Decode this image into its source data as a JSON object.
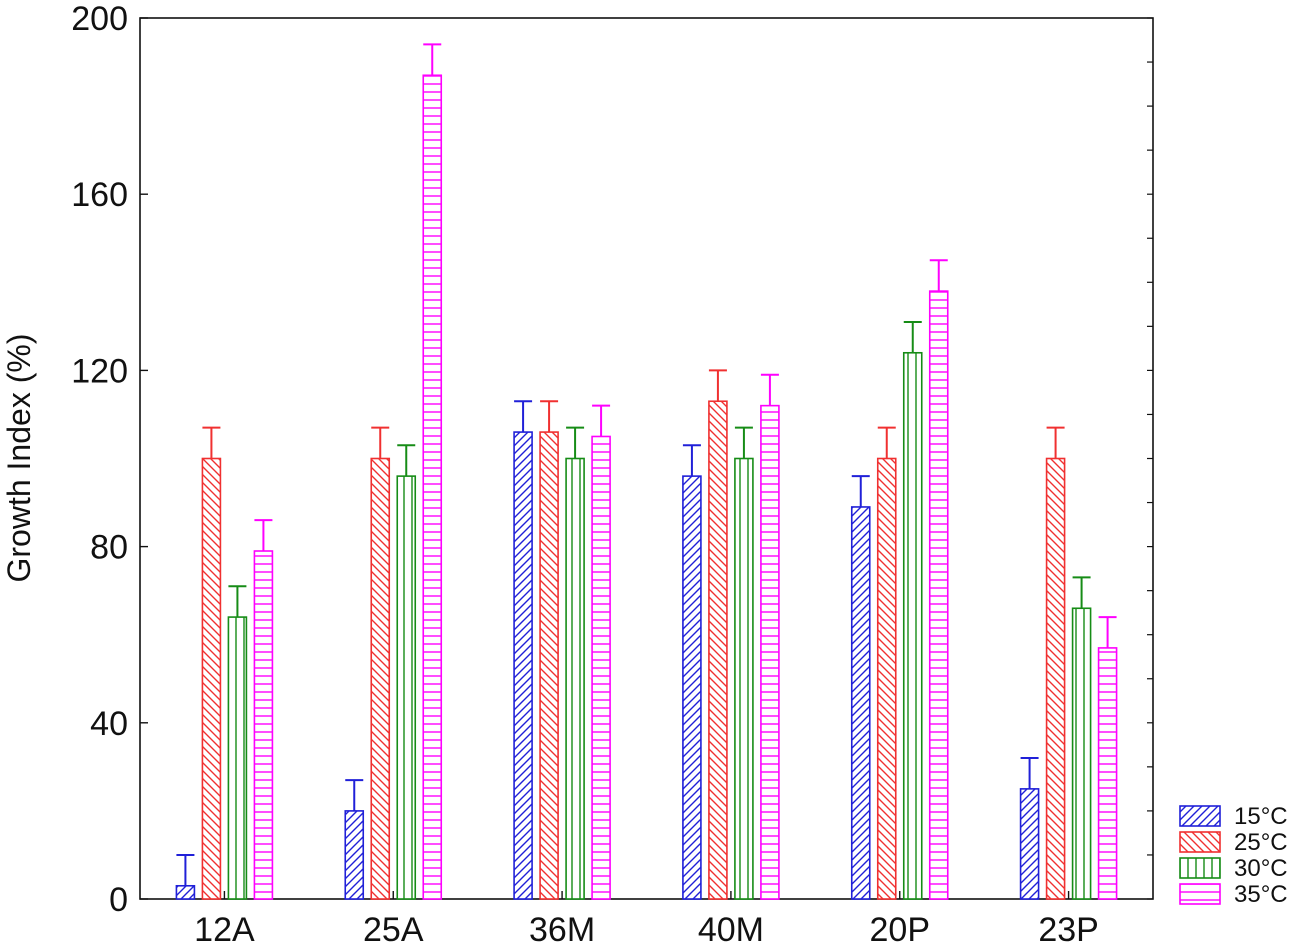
{
  "chart_data": {
    "type": "bar",
    "title": "",
    "xlabel": "",
    "ylabel": "Growth Index (%)",
    "ylim": [
      0,
      200
    ],
    "yticks": [
      0,
      40,
      80,
      120,
      160,
      200
    ],
    "categories": [
      "12A",
      "25A",
      "36M",
      "40M",
      "20P",
      "23P"
    ],
    "series": [
      {
        "name": "15°C",
        "color": "#2020d8",
        "pattern": "diagonal-up",
        "values": [
          3,
          20,
          106,
          96,
          89,
          25
        ],
        "errors": [
          7,
          7,
          7,
          7,
          7,
          7
        ]
      },
      {
        "name": "25°C",
        "color": "#f03030",
        "pattern": "diagonal-down",
        "values": [
          100,
          100,
          106,
          113,
          100,
          100
        ],
        "errors": [
          7,
          7,
          7,
          7,
          7,
          7
        ]
      },
      {
        "name": "30°C",
        "color": "#168c16",
        "pattern": "vertical",
        "values": [
          64,
          96,
          100,
          100,
          124,
          66
        ],
        "errors": [
          7,
          7,
          7,
          7,
          7,
          7
        ]
      },
      {
        "name": "35°C",
        "color": "#ff00ff",
        "pattern": "horizontal",
        "values": [
          79,
          187,
          105,
          112,
          138,
          57
        ],
        "errors": [
          7,
          7,
          7,
          7,
          7,
          7
        ]
      }
    ],
    "error_bars": "upper",
    "grid": false,
    "legend_position": "bottom-right"
  }
}
